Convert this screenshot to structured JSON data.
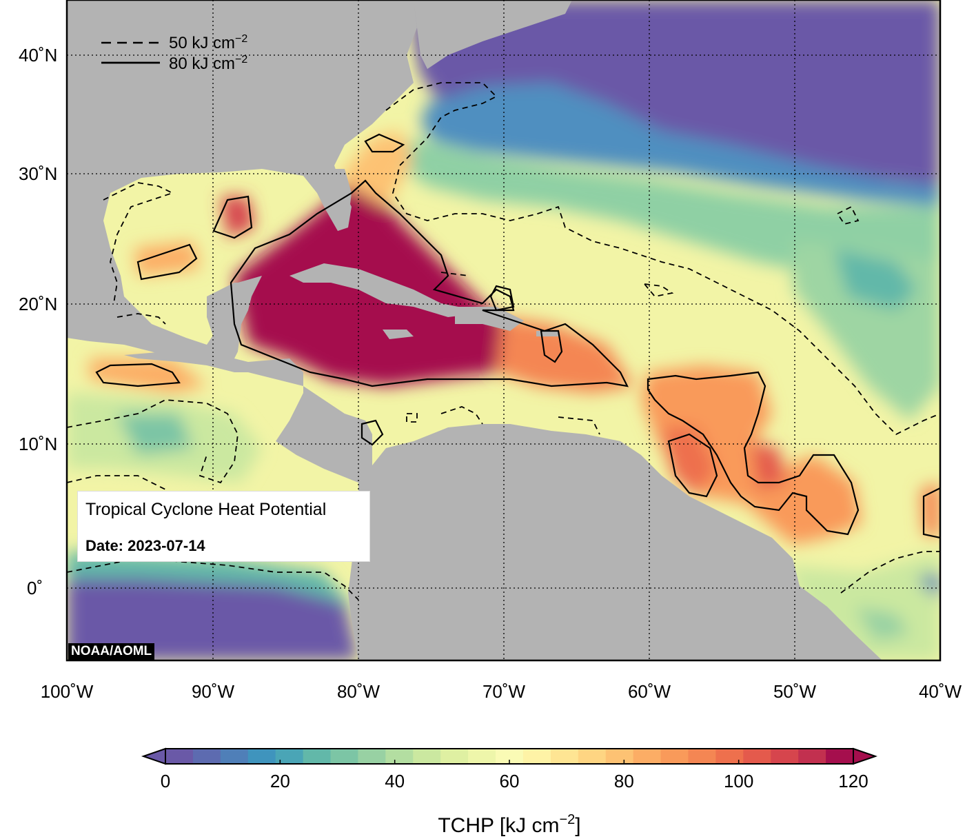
{
  "map": {
    "info_title": "Tropical Cyclone Heat Potential",
    "date_label": "Date: 2023-07-14",
    "credit": "NOAA/AOML",
    "latitude_ticks": [
      "40˚N",
      "30˚N",
      "20˚N",
      "10˚N",
      "0˚"
    ],
    "longitude_ticks": [
      "100˚W",
      "90˚W",
      "80˚W",
      "70˚W",
      "60˚W",
      "50˚W",
      "40˚W"
    ],
    "contour_legend": [
      {
        "style": "dashed",
        "value": "50",
        "unit": "kJ cm",
        "exponent": "−2"
      },
      {
        "style": "solid",
        "value": "80",
        "unit": "kJ cm",
        "exponent": "−2"
      }
    ],
    "colors": {
      "land": "#b3b3b3",
      "ocean_cold": "#6a59a7",
      "ocean_hot": "#a50f4d"
    }
  },
  "colorbar": {
    "title": "TCHP [kJ cm",
    "title_exponent": "−2",
    "title_close": "]",
    "tick_labels": [
      "0",
      "20",
      "40",
      "60",
      "80",
      "100",
      "120"
    ],
    "colors": [
      "#6a59a7",
      "#5d6bb0",
      "#4f7fb8",
      "#3f94bd",
      "#4aa5b6",
      "#62b8a9",
      "#7cc5a5",
      "#98d1a3",
      "#b3dea1",
      "#cbe8a0",
      "#dff0a2",
      "#eef6aa",
      "#fafbb5",
      "#fef3a6",
      "#fee593",
      "#fed582",
      "#fdc273",
      "#fcad65",
      "#f99a5a",
      "#f48653",
      "#ee704d",
      "#e45a4c",
      "#d6454d",
      "#c2304f",
      "#a50f4d"
    ]
  }
}
